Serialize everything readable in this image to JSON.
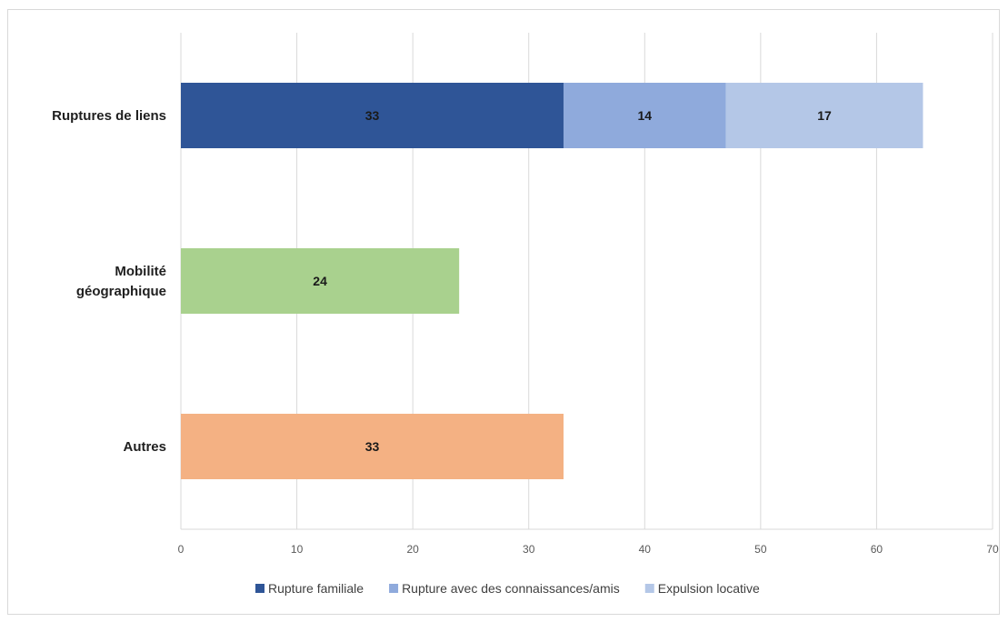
{
  "chart_data": {
    "type": "bar",
    "orientation": "horizontal",
    "stacked": true,
    "title": "",
    "xlabel": "",
    "ylabel": "",
    "xlim": [
      0,
      70
    ],
    "x_ticks": [
      0,
      10,
      20,
      30,
      40,
      50,
      60,
      70
    ],
    "grid": "vertical",
    "legend_position": "bottom",
    "categories": [
      {
        "label_lines": [
          "Ruptures de liens"
        ],
        "segments": [
          {
            "series": "Rupture familiale",
            "value": 33,
            "color": "#2f5597"
          },
          {
            "series": "Rupture avec des connaissances/amis",
            "value": 14,
            "color": "#8faadc"
          },
          {
            "series": "Expulsion locative",
            "value": 17,
            "color": "#b4c7e7"
          }
        ]
      },
      {
        "label_lines": [
          "Mobilité",
          "géographique"
        ],
        "segments": [
          {
            "series": "",
            "value": 24,
            "color": "#a9d18e"
          }
        ]
      },
      {
        "label_lines": [
          "Autres"
        ],
        "segments": [
          {
            "series": "",
            "value": 33,
            "color": "#f4b183"
          }
        ]
      }
    ],
    "legend": [
      {
        "name": "Rupture familiale",
        "color": "#2f5597"
      },
      {
        "name": "Rupture avec des connaissances/amis",
        "color": "#8faadc"
      },
      {
        "name": "Expulsion locative",
        "color": "#b4c7e7"
      }
    ]
  }
}
